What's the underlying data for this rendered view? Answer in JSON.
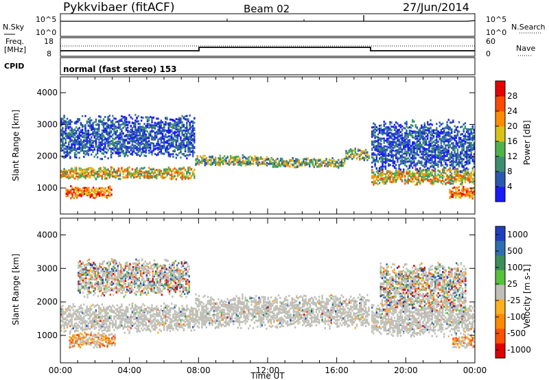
{
  "header": {
    "title": "Pykkvibaer (fitACF)",
    "beam": "Beam 02",
    "date": "27/Jun/2014"
  },
  "top_panels": {
    "nsky_label": "N.Sky",
    "nsky_ticks": [
      "10^5",
      "10^0"
    ],
    "nsearch_label": "N.Search",
    "nsearch_ticks": [
      "10^5",
      "10^0"
    ],
    "freq_label_1": "Freq.",
    "freq_label_2": "[MHz]",
    "freq_ticks": [
      "18",
      "8"
    ],
    "nave_label": "Nave",
    "nave_ticks": [
      "60",
      "0"
    ],
    "cpid_label": "CPID",
    "cpid_text": "normal (fast stereo) 153"
  },
  "chart_data": [
    {
      "type": "heatmap",
      "name": "power",
      "xlabel": "",
      "ylabel": "Slant Range [km]",
      "xlim": [
        0,
        24
      ],
      "ylim": [
        180,
        4500
      ],
      "yticks": [
        "1000",
        "2000",
        "3000",
        "4000"
      ],
      "colorbar_label": "Power [dB]",
      "colorbar_ticks": [
        "4",
        "8",
        "12",
        "16",
        "20",
        "24",
        "28"
      ],
      "colorbar_colors": [
        "#1a1aff",
        "#2b58b0",
        "#3c8f6e",
        "#4fb34a",
        "#d8c21a",
        "#ff8c00",
        "#ff4a00",
        "#e80000"
      ],
      "bands": [
        {
          "x": [
            0.0,
            7.8
          ],
          "center": 1450,
          "width": 320,
          "level": "high"
        },
        {
          "x": [
            7.8,
            12.0
          ],
          "center": 1850,
          "width": 280,
          "level": "mid"
        },
        {
          "x": [
            12.0,
            16.5
          ],
          "center": 1780,
          "width": 260,
          "level": "mid"
        },
        {
          "x": [
            16.5,
            17.9
          ],
          "center": 2050,
          "width": 300,
          "level": "mid"
        },
        {
          "x": [
            18.0,
            24.0
          ],
          "center": 1350,
          "width": 420,
          "level": "high"
        },
        {
          "x": [
            0.0,
            7.8
          ],
          "center": 2600,
          "width": 1100,
          "level": "low"
        },
        {
          "x": [
            18.0,
            24.0
          ],
          "center": 2300,
          "width": 1300,
          "level": "low"
        },
        {
          "x": [
            0.3,
            3.0
          ],
          "center": 850,
          "width": 300,
          "level": "peak"
        },
        {
          "x": [
            22.5,
            24.0
          ],
          "center": 850,
          "width": 300,
          "level": "peak"
        }
      ]
    },
    {
      "type": "heatmap",
      "name": "velocity",
      "xlabel": "Time UT",
      "ylabel": "Slant Range [km]",
      "xlim": [
        0,
        24
      ],
      "ylim": [
        180,
        4500
      ],
      "xticks": [
        "00:00",
        "04:00",
        "08:00",
        "12:00",
        "16:00",
        "20:00",
        "00:00"
      ],
      "yticks": [
        "1000",
        "2000",
        "3000",
        "4000"
      ],
      "colorbar_label": "Velocity [m s-1]",
      "colorbar_ticks": [
        "1000",
        "500",
        "100",
        "25",
        "-25",
        "-100",
        "-500",
        "-1000"
      ],
      "colorbar_colors": [
        "#1f3fbf",
        "#2e6fb0",
        "#3c8f5a",
        "#56c23a",
        "#c0c0b8",
        "#ffb020",
        "#ff8a00",
        "#ff5000",
        "#e00000"
      ],
      "bands": [
        {
          "x": [
            0.0,
            7.8
          ],
          "center": 1500,
          "width": 700,
          "level": "ground"
        },
        {
          "x": [
            7.8,
            17.9
          ],
          "center": 1700,
          "width": 800,
          "level": "ground"
        },
        {
          "x": [
            18.0,
            24.0
          ],
          "center": 1450,
          "width": 800,
          "level": "ground"
        },
        {
          "x": [
            0.5,
            3.2
          ],
          "center": 850,
          "width": 380,
          "level": "negative"
        },
        {
          "x": [
            22.7,
            24.0
          ],
          "center": 800,
          "width": 300,
          "level": "negative"
        },
        {
          "x": [
            1.0,
            7.5
          ],
          "center": 2700,
          "width": 900,
          "level": "mixed"
        },
        {
          "x": [
            18.5,
            23.5
          ],
          "center": 2400,
          "width": 1200,
          "level": "mixed"
        }
      ]
    }
  ]
}
